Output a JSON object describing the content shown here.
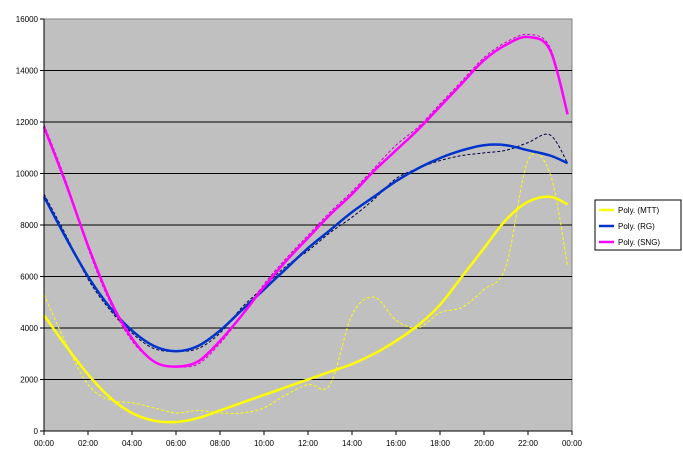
{
  "chart_data": {
    "type": "line",
    "title": "",
    "xlabel": "",
    "ylabel": "",
    "ylim": [
      0,
      16000
    ],
    "xlim": [
      "00:00",
      "24:00"
    ],
    "x_ticks": [
      "00:00",
      "02:00",
      "04:00",
      "06:00",
      "08:00",
      "10:00",
      "12:00",
      "14:00",
      "16:00",
      "18:00",
      "20:00",
      "22:00",
      "00:00"
    ],
    "y_ticks": [
      0,
      2000,
      4000,
      6000,
      8000,
      10000,
      12000,
      14000,
      16000
    ],
    "grid": "horizontal",
    "background": "#c0c0c0",
    "legend_position": "right",
    "legend": [
      "Poly. (MTT)",
      "Poly. (RG)",
      "Poly. (SNG)"
    ],
    "x_hours": [
      0,
      1,
      2,
      3,
      4,
      5,
      6,
      7,
      8,
      9,
      10,
      11,
      12,
      13,
      14,
      15,
      16,
      17,
      18,
      19,
      20,
      21,
      22,
      23,
      23.8
    ],
    "series": [
      {
        "name": "Poly. (MTT)",
        "color": "#ffff00",
        "trend": [
          4500,
          3300,
          2200,
          1300,
          700,
          400,
          350,
          500,
          800,
          1100,
          1400,
          1700,
          2000,
          2300,
          2600,
          3000,
          3500,
          4100,
          4900,
          6000,
          7100,
          8200,
          8900,
          9100,
          8800
        ],
        "raw": [
          5300,
          3400,
          1800,
          1200,
          1100,
          900,
          700,
          800,
          700,
          700,
          900,
          1400,
          1800,
          1800,
          4500,
          5200,
          4300,
          4000,
          4600,
          4800,
          5500,
          6400,
          10500,
          10000,
          6400
        ]
      },
      {
        "name": "Poly. (RG)",
        "color": "#0033cc",
        "trend": [
          9100,
          7500,
          6000,
          4800,
          3900,
          3300,
          3100,
          3300,
          3900,
          4700,
          5500,
          6300,
          7100,
          7800,
          8500,
          9100,
          9700,
          10200,
          10600,
          10900,
          11100,
          11100,
          10900,
          10700,
          10400
        ],
        "raw": [
          9200,
          7600,
          5900,
          4700,
          3800,
          3200,
          3100,
          3200,
          3800,
          4800,
          5600,
          6400,
          7000,
          7700,
          8300,
          9000,
          9800,
          10200,
          10500,
          10700,
          10800,
          10900,
          11200,
          11500,
          10400
        ]
      },
      {
        "name": "Poly. (SNG)",
        "color": "#ff00ff",
        "trend": [
          11800,
          9600,
          7200,
          5100,
          3600,
          2700,
          2500,
          2700,
          3500,
          4500,
          5600,
          6600,
          7500,
          8400,
          9200,
          10100,
          10900,
          11700,
          12600,
          13500,
          14400,
          15000,
          15300,
          14800,
          12300
        ],
        "raw": [
          11900,
          9700,
          7100,
          5000,
          3500,
          2700,
          2500,
          2600,
          3400,
          4500,
          5700,
          6700,
          7600,
          8500,
          9300,
          10200,
          11100,
          11800,
          12700,
          13600,
          14500,
          15100,
          15400,
          14900,
          12300
        ]
      }
    ]
  }
}
